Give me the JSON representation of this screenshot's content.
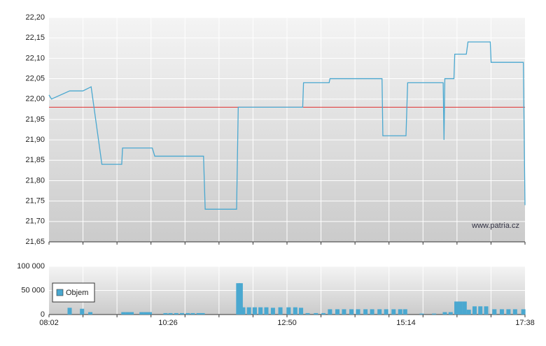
{
  "chart_data": [
    {
      "type": "line",
      "source": "www.patria.cz",
      "xlim": [
        "08:02",
        "17:38"
      ],
      "ylim": [
        21.65,
        22.2
      ],
      "yticks": [
        {
          "value": 22.2,
          "label": "22,20"
        },
        {
          "value": 22.15,
          "label": "22,15"
        },
        {
          "value": 22.1,
          "label": "22,10"
        },
        {
          "value": 22.05,
          "label": "22,05"
        },
        {
          "value": 22.0,
          "label": "22,00"
        },
        {
          "value": 21.95,
          "label": "21,95"
        },
        {
          "value": 21.9,
          "label": "21,90"
        },
        {
          "value": 21.85,
          "label": "21,85"
        },
        {
          "value": 21.8,
          "label": "21,80"
        },
        {
          "value": 21.75,
          "label": "21,75"
        },
        {
          "value": 21.7,
          "label": "21,70"
        },
        {
          "value": 21.65,
          "label": "21,65"
        }
      ],
      "reference_line": 21.98,
      "reference_color": "#e03030",
      "grid": true,
      "series": [
        {
          "color": "#4aa8d0",
          "x": [
            "08:02",
            "08:05",
            "08:27",
            "08:43",
            "08:53",
            "09:06",
            "09:30",
            "09:31",
            "10:07",
            "10:10",
            "11:09",
            "11:11",
            "11:49",
            "11:51",
            "13:09",
            "13:10",
            "13:41",
            "13:42",
            "14:45",
            "14:46",
            "15:14",
            "15:16",
            "15:59",
            "16:00",
            "16:01",
            "16:12",
            "16:13",
            "16:27",
            "16:29",
            "16:56",
            "16:57",
            "17:36",
            "17:38"
          ],
          "values": [
            22.01,
            22.0,
            22.02,
            22.02,
            22.03,
            21.84,
            21.84,
            21.88,
            21.88,
            21.86,
            21.86,
            21.73,
            21.73,
            21.98,
            21.98,
            22.04,
            22.04,
            22.05,
            22.05,
            21.91,
            21.91,
            22.04,
            22.04,
            21.9,
            22.05,
            22.05,
            22.11,
            22.11,
            22.14,
            22.14,
            22.09,
            22.09,
            21.74
          ]
        }
      ]
    },
    {
      "type": "bar",
      "xlim": [
        "08:02",
        "17:38"
      ],
      "xticks": [
        "08:02",
        "10:26",
        "12:50",
        "15:14",
        "17:38"
      ],
      "ylim": [
        0,
        100000
      ],
      "yticks": [
        {
          "value": 100000,
          "label": "100 000"
        },
        {
          "value": 50000,
          "label": "50 000"
        },
        0
      ],
      "grid": true,
      "series": [
        {
          "name": "Objem",
          "color": "#4aa8d0",
          "x": [
            "08:27",
            "08:42",
            "08:52",
            "09:32",
            "09:37",
            "09:42",
            "09:54",
            "09:59",
            "10:04",
            "10:23",
            "10:29",
            "10:36",
            "10:43",
            "10:50",
            "10:56",
            "11:03",
            "11:08",
            "11:51",
            "11:54",
            "11:57",
            "12:04",
            "12:11",
            "12:18",
            "12:25",
            "12:33",
            "12:42",
            "12:52",
            "13:00",
            "13:07",
            "13:15",
            "13:25",
            "13:34",
            "13:42",
            "13:51",
            "13:59",
            "14:08",
            "14:16",
            "14:25",
            "14:33",
            "14:42",
            "14:50",
            "14:59",
            "15:07",
            "15:13",
            "15:33",
            "15:48",
            "16:01",
            "16:08",
            "16:15",
            "16:20",
            "16:25",
            "16:30",
            "16:37",
            "16:44",
            "16:51",
            "17:01",
            "17:10",
            "17:18",
            "17:26",
            "17:36"
          ],
          "values": [
            14000,
            12000,
            5000,
            5000,
            5000,
            5000,
            5000,
            5000,
            5000,
            3000,
            3000,
            3000,
            3000,
            3000,
            3000,
            3000,
            3000,
            65000,
            65000,
            15000,
            15000,
            15000,
            15000,
            15000,
            14000,
            15000,
            15000,
            15000,
            14000,
            3000,
            3000,
            3000,
            11000,
            11000,
            11000,
            11000,
            11000,
            11000,
            11000,
            11000,
            11000,
            11000,
            11000,
            11000,
            2000,
            2000,
            5000,
            5000,
            27000,
            27000,
            27000,
            10000,
            17000,
            17000,
            17000,
            11000,
            11000,
            11000,
            11000,
            11000
          ]
        }
      ]
    }
  ]
}
